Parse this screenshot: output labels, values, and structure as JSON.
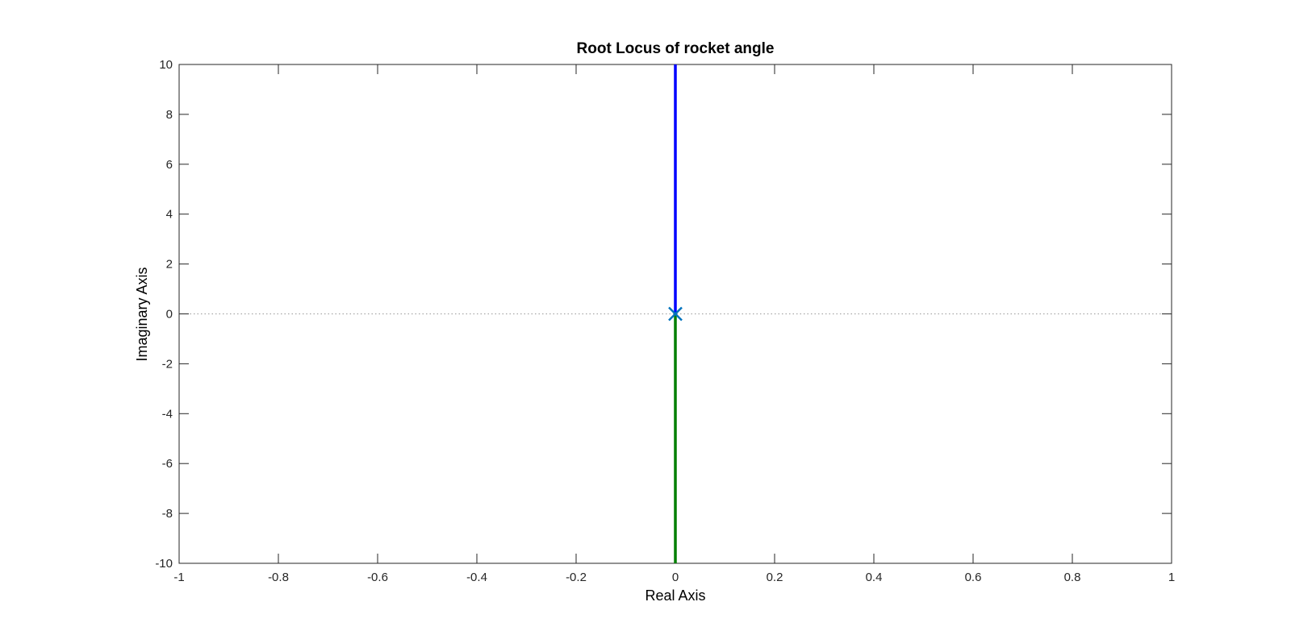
{
  "chart_data": {
    "type": "line",
    "title": "Root Locus of rocket angle",
    "xlabel": "Real Axis",
    "ylabel": "Imaginary Axis",
    "xlim": [
      -1,
      1
    ],
    "ylim": [
      -10,
      10
    ],
    "xticks": [
      -1,
      -0.8,
      -0.6,
      -0.4,
      -0.2,
      0,
      0.2,
      0.4,
      0.6,
      0.8,
      1
    ],
    "xtick_labels": [
      "-1",
      "-0.8",
      "-0.6",
      "-0.4",
      "-0.2",
      "0",
      "0.2",
      "0.4",
      "0.6",
      "0.8",
      "1"
    ],
    "yticks": [
      -10,
      -8,
      -6,
      -4,
      -2,
      0,
      2,
      4,
      6,
      8,
      10
    ],
    "ytick_labels": [
      "-10",
      "-8",
      "-6",
      "-4",
      "-2",
      "0",
      "2",
      "4",
      "6",
      "8",
      "10"
    ],
    "grid": false,
    "reference_line": {
      "y": 0,
      "style": "dotted",
      "color": "#999999"
    },
    "series": [
      {
        "color": "#0000ff",
        "x": [
          0,
          0
        ],
        "y": [
          0,
          10
        ]
      },
      {
        "color": "#007f00",
        "x": [
          0,
          0
        ],
        "y": [
          0,
          -10
        ]
      }
    ],
    "poles": [
      {
        "x": 0,
        "y": 0,
        "marker": "x",
        "color": "#0072bd"
      }
    ],
    "colors": {
      "axis": "#262626",
      "background": "#ffffff"
    }
  }
}
